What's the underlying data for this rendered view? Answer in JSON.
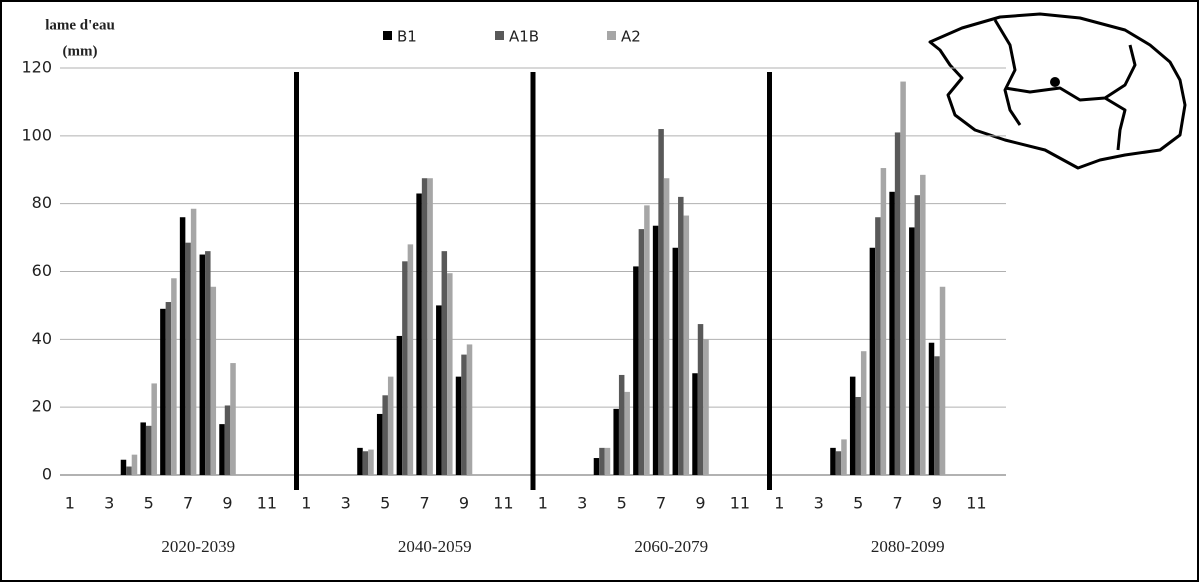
{
  "chart_data": {
    "type": "bar",
    "ylabel": [
      "lame d'eau",
      "(mm)"
    ],
    "groups": [
      "2020-2039",
      "2040-2059",
      "2060-2079",
      "2080-2099"
    ],
    "categories": [
      "1",
      null,
      "3",
      null,
      "5",
      null,
      "7",
      null,
      "9",
      null,
      "11",
      null,
      "1",
      null,
      "3",
      null,
      "5",
      null,
      "7",
      null,
      "9",
      null,
      "11",
      null,
      "1",
      null,
      "3",
      null,
      "5",
      null,
      "7",
      null,
      "9",
      null,
      "11",
      null,
      "1",
      null,
      "3",
      null,
      "5",
      null,
      "7",
      null,
      "9",
      null,
      "11",
      null
    ],
    "series": [
      {
        "name": "B1",
        "color": "#000000",
        "values": [
          null,
          null,
          null,
          4.5,
          15.5,
          49,
          76,
          65,
          15,
          null,
          null,
          null,
          null,
          null,
          null,
          8,
          18,
          41,
          83,
          50,
          29,
          null,
          null,
          null,
          null,
          null,
          null,
          5,
          19.5,
          61.5,
          73.5,
          67,
          30,
          null,
          null,
          null,
          null,
          null,
          null,
          8,
          29,
          67,
          83.5,
          73,
          39,
          null,
          null,
          null
        ]
      },
      {
        "name": "A1B",
        "color": "#595959",
        "values": [
          null,
          null,
          null,
          2.5,
          14.5,
          51,
          68.5,
          66,
          20.5,
          null,
          null,
          null,
          null,
          null,
          null,
          7,
          23.5,
          63,
          87.5,
          66,
          35.5,
          null,
          null,
          null,
          null,
          null,
          null,
          8,
          29.5,
          72.5,
          102,
          82,
          44.5,
          null,
          null,
          null,
          null,
          null,
          null,
          7,
          23,
          76,
          101,
          82.5,
          35,
          null,
          null,
          null
        ]
      },
      {
        "name": "A2",
        "color": "#a6a6a6",
        "values": [
          null,
          null,
          null,
          6,
          27,
          58,
          78.5,
          55.5,
          33,
          null,
          null,
          null,
          null,
          null,
          null,
          7.5,
          29,
          68,
          87.5,
          59.5,
          38.5,
          null,
          null,
          null,
          null,
          null,
          null,
          8,
          24.5,
          79.5,
          87.5,
          76.5,
          40,
          null,
          null,
          null,
          null,
          null,
          null,
          10.5,
          36.5,
          90.5,
          116,
          88.5,
          55.5,
          null,
          null,
          null
        ]
      }
    ],
    "ylim": [
      0,
      120
    ],
    "yticks": [
      0,
      20,
      40,
      60,
      80,
      100,
      120
    ],
    "grid": true
  }
}
